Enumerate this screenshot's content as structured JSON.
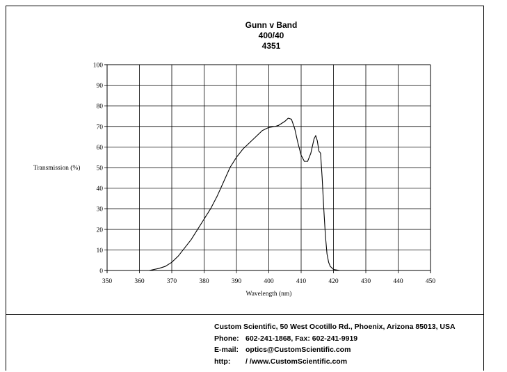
{
  "title": {
    "line1": "Gunn v Band",
    "line2": "400/40",
    "line3": "4351"
  },
  "chart_data": {
    "type": "line",
    "title": "Gunn v Band",
    "subtitle": [
      "400/40",
      "4351"
    ],
    "xlabel": "Wavelength (nm)",
    "ylabel": "Transmission (%)",
    "xlim": [
      350,
      450
    ],
    "ylim": [
      0,
      100
    ],
    "xticks": [
      350,
      360,
      370,
      380,
      390,
      400,
      410,
      420,
      430,
      440,
      450
    ],
    "yticks": [
      0,
      10,
      20,
      30,
      40,
      50,
      60,
      70,
      80,
      90,
      100
    ],
    "grid": true,
    "series": [
      {
        "x": [
          363,
          366,
          368,
          370,
          372,
          374,
          376,
          378,
          380,
          382,
          384,
          386,
          388,
          390,
          392,
          394,
          396,
          398,
          400,
          402,
          403,
          405,
          406,
          407,
          408,
          409,
          410,
          411,
          412,
          413,
          414,
          414.5,
          415,
          415.5,
          416,
          416.5,
          417,
          417.5,
          418,
          418.5,
          419,
          420,
          422,
          425
        ],
        "y": [
          0,
          1,
          2,
          4,
          7,
          11,
          15,
          20,
          25,
          30,
          36,
          43,
          50,
          55,
          59,
          62,
          65,
          68,
          69.5,
          70,
          70.5,
          72.5,
          74,
          73.5,
          69,
          62,
          56,
          53,
          53,
          57,
          64,
          65.5,
          63,
          58,
          57,
          45,
          30,
          17,
          8,
          4,
          2,
          0.5,
          0,
          0
        ]
      }
    ]
  },
  "footer": {
    "address": "Custom Scientific, 50 West Ocotillo Rd., Phoenix, Arizona 85013, USA",
    "phone_label": "Phone:",
    "phone_value": "602-241-1868, Fax:  602-241-9919",
    "email_label": "E-mail:",
    "email_value": "optics@CustomScientific.com",
    "http_label": "http:",
    "http_value": "/ /www.CustomScientific.com"
  }
}
